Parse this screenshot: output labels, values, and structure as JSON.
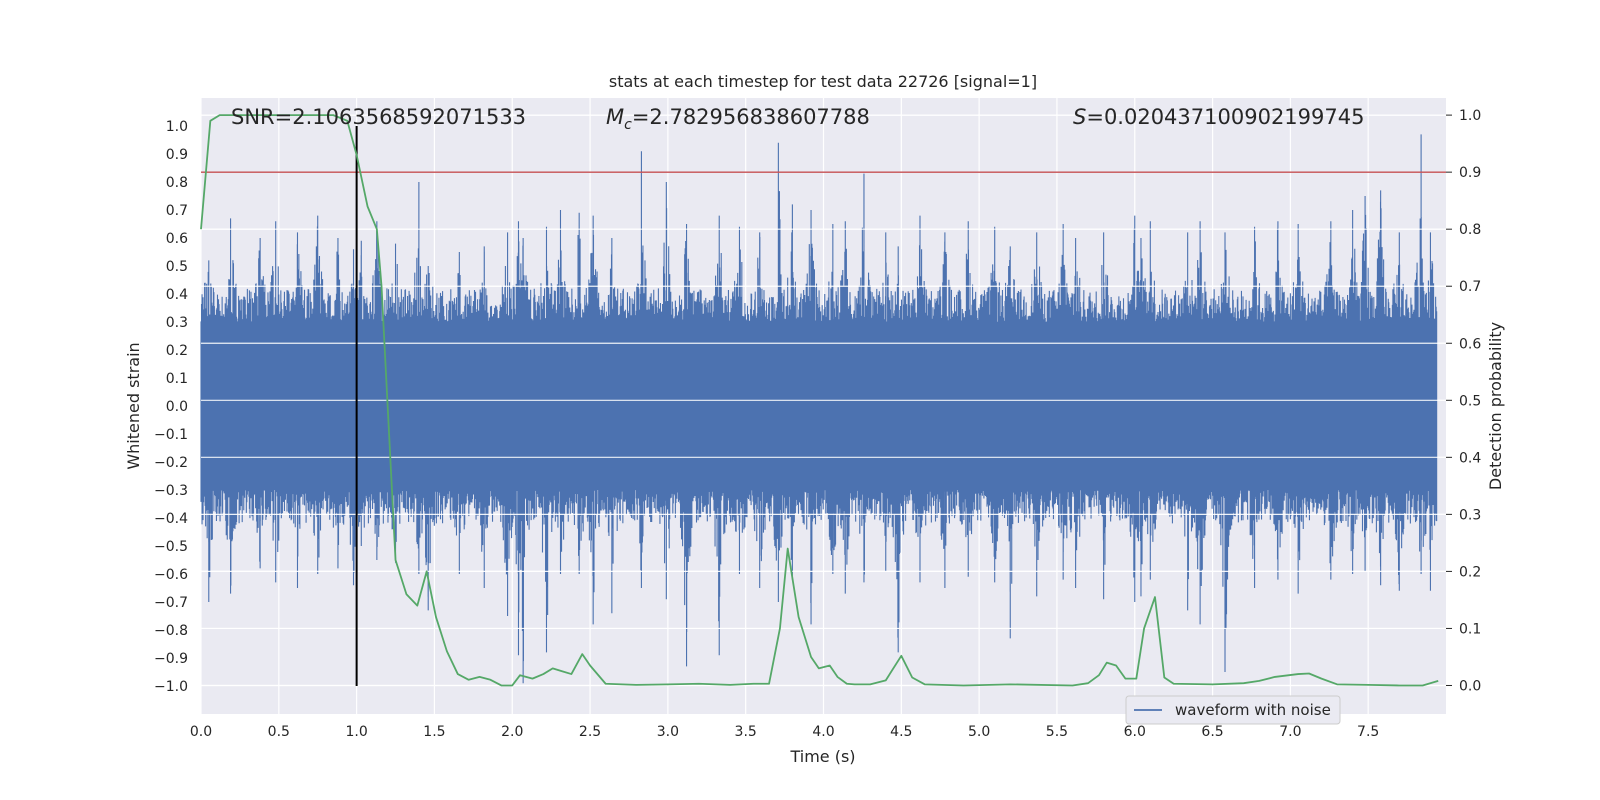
{
  "chart_data": {
    "type": "line",
    "title": "stats at each timestep for test data 22726 [signal=1]",
    "xlabel": "Time (s)",
    "ylabel": "Whitened strain",
    "y2label": "Detection probability",
    "xlim": [
      0.0,
      8.0
    ],
    "ylim": [
      -1.1,
      1.1
    ],
    "y2lim": [
      -0.05,
      1.03
    ],
    "xticks": [
      0.0,
      0.5,
      1.0,
      1.5,
      2.0,
      2.5,
      3.0,
      3.5,
      4.0,
      4.5,
      5.0,
      5.5,
      6.0,
      6.5,
      7.0,
      7.5
    ],
    "xtick_labels": [
      "0.0",
      "0.5",
      "1.0",
      "1.5",
      "2.0",
      "2.5",
      "3.0",
      "3.5",
      "4.0",
      "4.5",
      "5.0",
      "5.5",
      "6.0",
      "6.5",
      "7.0",
      "7.5"
    ],
    "yticks": [
      1.0,
      0.9,
      0.8,
      0.7,
      0.6,
      0.5,
      0.4,
      0.3,
      0.2,
      0.1,
      0.0,
      -0.1,
      -0.2,
      -0.3,
      -0.4,
      -0.5,
      -0.6,
      -0.7,
      -0.8,
      -0.9,
      -1.0
    ],
    "ytick_labels": [
      "1.0",
      "0.9",
      "0.8",
      "0.7",
      "0.6",
      "0.5",
      "0.4",
      "0.3",
      "0.2",
      "0.1",
      "0.0",
      "−0.1",
      "−0.2",
      "−0.3",
      "−0.4",
      "−0.5",
      "−0.6",
      "−0.7",
      "−0.8",
      "−0.9",
      "−1.0"
    ],
    "y2ticks": [
      1.0,
      0.9,
      0.8,
      0.7,
      0.6,
      0.5,
      0.4,
      0.3,
      0.2,
      0.1,
      0.0
    ],
    "y2tick_labels": [
      "1.0",
      "0.9",
      "0.8",
      "0.7",
      "0.6",
      "0.5",
      "0.4",
      "0.3",
      "0.2",
      "0.1",
      "0.0"
    ],
    "annotations": {
      "snr": "SNR=2.1063568592071533",
      "mc_symbol": "M",
      "mc_sub": "c",
      "mc_value": "=2.782956838607788",
      "s_symbol": "S",
      "s_value": "=0.020437100902199745"
    },
    "grid": true,
    "legend_position": "lower-right",
    "series": [
      {
        "name": "waveform with noise",
        "axis": "left",
        "color": "#4c72b0",
        "envelope_core": 0.3,
        "peaks": [
          [
            0.05,
            0.52,
            -0.7
          ],
          [
            0.19,
            0.67,
            -0.67
          ],
          [
            0.38,
            0.6,
            -0.58
          ],
          [
            0.48,
            0.66,
            -0.63
          ],
          [
            0.62,
            0.62,
            -0.65
          ],
          [
            0.75,
            0.68,
            -0.6
          ],
          [
            0.88,
            0.6,
            -0.58
          ],
          [
            0.98,
            0.56,
            -0.64
          ],
          [
            1.03,
            0.59,
            -0.5
          ],
          [
            1.13,
            0.66,
            -0.55
          ],
          [
            1.25,
            0.58,
            -0.56
          ],
          [
            1.4,
            0.8,
            -0.6
          ],
          [
            1.46,
            0.5,
            -0.73
          ],
          [
            1.66,
            0.55,
            -0.6
          ],
          [
            1.82,
            0.57,
            -0.65
          ],
          [
            1.97,
            0.62,
            -0.75
          ],
          [
            2.04,
            0.66,
            -0.89
          ],
          [
            2.07,
            0.6,
            -0.99
          ],
          [
            2.22,
            0.64,
            -0.88
          ],
          [
            2.31,
            0.7,
            -0.6
          ],
          [
            2.43,
            0.69,
            -0.6
          ],
          [
            2.52,
            0.68,
            -0.78
          ],
          [
            2.64,
            0.6,
            -0.74
          ],
          [
            2.83,
            0.91,
            -0.65
          ],
          [
            2.99,
            0.8,
            -0.69
          ],
          [
            3.12,
            0.65,
            -0.93
          ],
          [
            3.33,
            0.68,
            -0.89
          ],
          [
            3.46,
            0.64,
            -0.6
          ],
          [
            3.59,
            0.62,
            -0.65
          ],
          [
            3.71,
            0.94,
            -0.7
          ],
          [
            3.8,
            0.72,
            -0.62
          ],
          [
            3.92,
            0.7,
            -0.78
          ],
          [
            4.06,
            0.65,
            -0.6
          ],
          [
            4.14,
            0.66,
            -0.67
          ],
          [
            4.26,
            0.83,
            -0.63
          ],
          [
            4.4,
            0.62,
            -0.59
          ],
          [
            4.48,
            0.57,
            -0.88
          ],
          [
            4.62,
            0.68,
            -0.63
          ],
          [
            4.78,
            0.62,
            -0.65
          ],
          [
            4.93,
            0.66,
            -0.61
          ],
          [
            5.1,
            0.64,
            -0.63
          ],
          [
            5.2,
            0.57,
            -0.83
          ],
          [
            5.37,
            0.62,
            -0.68
          ],
          [
            5.54,
            0.65,
            -0.62
          ],
          [
            5.62,
            0.6,
            -0.65
          ],
          [
            5.8,
            0.62,
            -0.69
          ],
          [
            6.0,
            0.68,
            -0.7
          ],
          [
            6.04,
            0.6,
            -0.68
          ],
          [
            6.1,
            0.66,
            -0.62
          ],
          [
            6.34,
            0.62,
            -0.73
          ],
          [
            6.42,
            0.66,
            -0.78
          ],
          [
            6.58,
            0.62,
            -0.95
          ],
          [
            6.77,
            0.64,
            -0.65
          ],
          [
            6.92,
            0.66,
            -0.62
          ],
          [
            7.05,
            0.65,
            -0.67
          ],
          [
            7.26,
            0.66,
            -0.62
          ],
          [
            7.4,
            0.7,
            -0.6
          ],
          [
            7.48,
            0.75,
            -0.59
          ],
          [
            7.58,
            0.77,
            -0.64
          ],
          [
            7.7,
            0.62,
            -0.66
          ],
          [
            7.84,
            0.97,
            -0.6
          ],
          [
            7.9,
            0.62,
            -0.66
          ]
        ]
      },
      {
        "name": "",
        "axis": "right",
        "color": "#55a868",
        "x": [
          0.0,
          0.06,
          0.12,
          0.5,
          0.85,
          0.94,
          1.0,
          1.07,
          1.13,
          1.16,
          1.25,
          1.32,
          1.39,
          1.45,
          1.51,
          1.58,
          1.65,
          1.72,
          1.79,
          1.86,
          1.93,
          2.0,
          2.05,
          2.13,
          2.2,
          2.26,
          2.32,
          2.38,
          2.45,
          2.5,
          2.6,
          2.8,
          3.0,
          3.2,
          3.4,
          3.55,
          3.65,
          3.72,
          3.77,
          3.84,
          3.92,
          3.97,
          4.04,
          4.09,
          4.15,
          4.2,
          4.3,
          4.4,
          4.5,
          4.57,
          4.65,
          4.9,
          5.2,
          5.6,
          5.7,
          5.77,
          5.82,
          5.88,
          5.94,
          6.01,
          6.06,
          6.13,
          6.19,
          6.25,
          6.5,
          6.7,
          6.8,
          6.9,
          7.05,
          7.12,
          7.2,
          7.3,
          7.5,
          7.7,
          7.85,
          7.95
        ],
        "values": [
          0.8,
          0.99,
          1.0,
          1.0,
          1.0,
          0.99,
          0.93,
          0.84,
          0.8,
          0.7,
          0.22,
          0.16,
          0.14,
          0.2,
          0.12,
          0.06,
          0.02,
          0.01,
          0.015,
          0.01,
          0.0,
          0.0,
          0.018,
          0.012,
          0.02,
          0.03,
          0.025,
          0.02,
          0.055,
          0.035,
          0.003,
          0.001,
          0.002,
          0.003,
          0.001,
          0.003,
          0.003,
          0.1,
          0.24,
          0.12,
          0.05,
          0.03,
          0.035,
          0.015,
          0.003,
          0.002,
          0.002,
          0.009,
          0.052,
          0.014,
          0.002,
          0.0,
          0.002,
          0.0,
          0.004,
          0.018,
          0.04,
          0.035,
          0.012,
          0.012,
          0.1,
          0.155,
          0.014,
          0.003,
          0.002,
          0.004,
          0.008,
          0.015,
          0.02,
          0.021,
          0.012,
          0.002,
          0.001,
          0.0,
          0.0,
          0.008
        ]
      }
    ],
    "hlines": [
      {
        "axis": "right",
        "y": 0.9,
        "color": "#c44e52"
      }
    ],
    "vlines": [
      {
        "axis": "left",
        "x": 1.0,
        "ymin": -1.0,
        "ymax": 1.0,
        "color": "#000000"
      }
    ]
  }
}
